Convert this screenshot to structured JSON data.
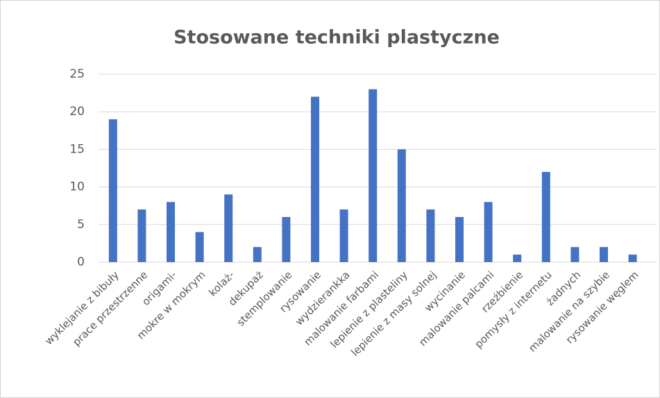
{
  "chart_data": {
    "type": "bar",
    "title": "Stosowane techniki plastyczne",
    "categories": [
      "wyklejanie z bibuły",
      "prace przestrzenne",
      "origami-",
      "mokre w mokrym",
      "kolaż-",
      "dekupaż",
      "stemplowanie",
      "rysowanie",
      "wydzierankka",
      "malowanie farbami",
      "lepienie z plasteliny",
      "lepienie z masy solnej",
      "wycinanie",
      "malowanie palcami",
      "rzeźbienie",
      "pomysły z internetu",
      "żadnych",
      "malowanie na szybie",
      "rysowanie węglem"
    ],
    "values": [
      19,
      7,
      8,
      4,
      9,
      2,
      6,
      22,
      7,
      23,
      15,
      7,
      6,
      8,
      1,
      12,
      2,
      2,
      1
    ],
    "color": "#4472c4",
    "ylim": [
      0,
      25
    ],
    "yticks": [
      0,
      5,
      10,
      15,
      20,
      25
    ],
    "grid": true
  }
}
